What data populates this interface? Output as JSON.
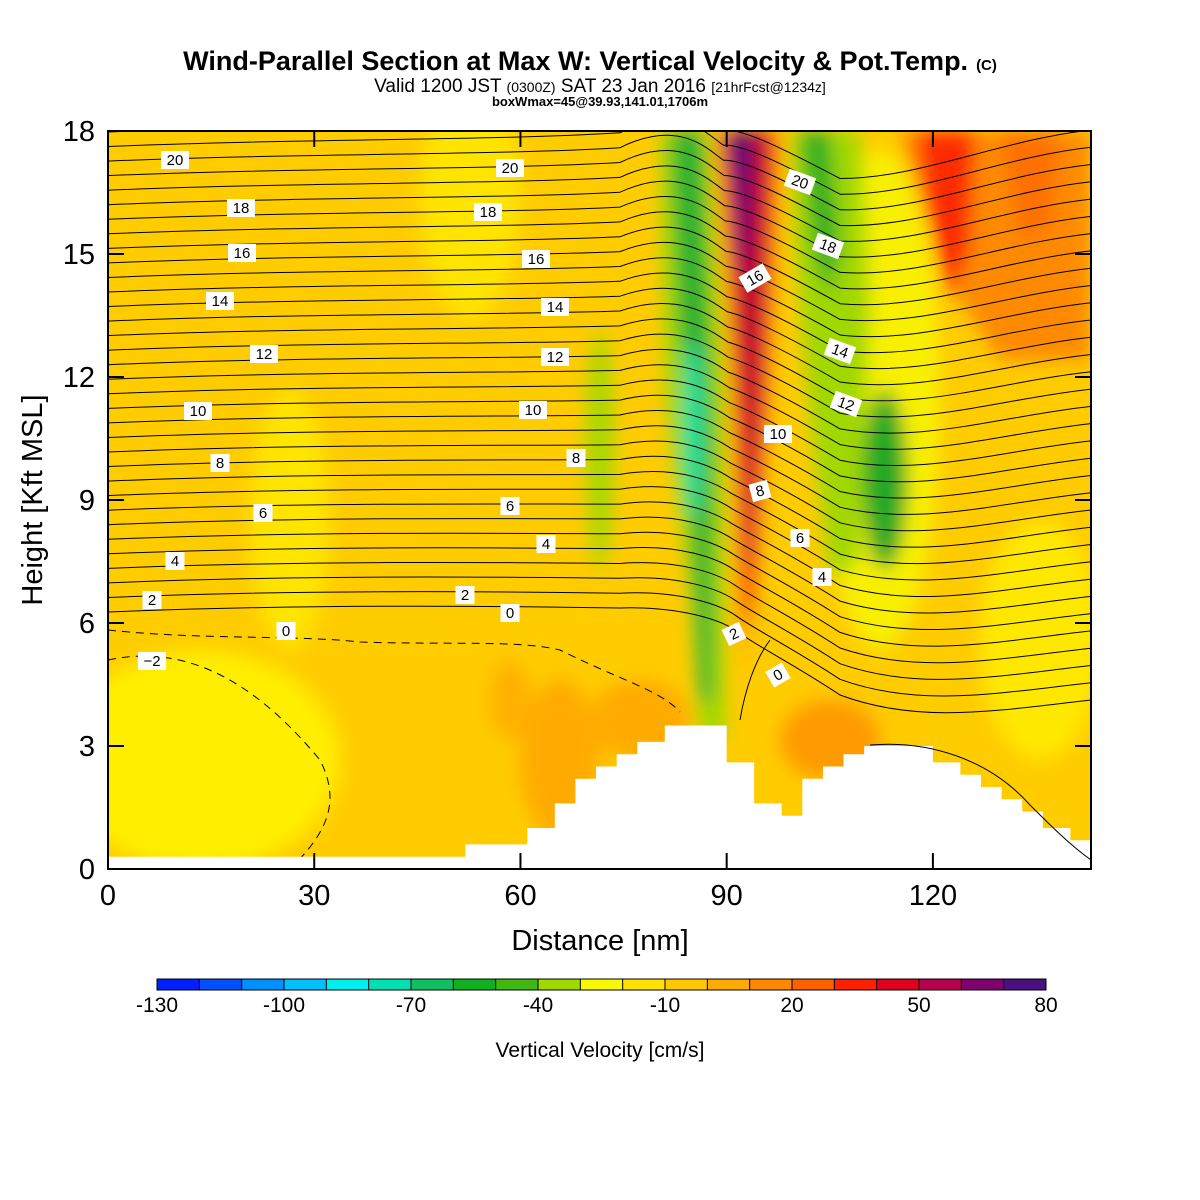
{
  "header": {
    "title": "Wind-Parallel Section at Max W: Vertical Velocity & Pot.Temp.",
    "title_mark": "(C)",
    "valid_prefix": "Valid 1200 JST",
    "valid_tz": "(0300Z)",
    "valid_date": "SAT 23 Jan 2016",
    "valid_fcst": "[21hrFcst@1234z]",
    "box_info": "boxWmax=45@39.93,141.01,1706m"
  },
  "chart_data": {
    "type": "heatmap",
    "xlabel": "Distance [nm]",
    "ylabel": "Height [Kft MSL]",
    "xlim": [
      0,
      143
    ],
    "ylim": [
      0,
      18
    ],
    "x_ticks": [
      "0",
      "30",
      "60",
      "90",
      "120"
    ],
    "y_ticks": [
      "0",
      "3",
      "6",
      "9",
      "12",
      "15",
      "18"
    ],
    "colorbar": {
      "label": "Vertical Velocity [cm/s]",
      "tick_labels": [
        "-130",
        "-100",
        "-70",
        "-40",
        "-10",
        "20",
        "50",
        "80"
      ],
      "colors": [
        "#0020ff",
        "#0050ff",
        "#0090ff",
        "#00c0ff",
        "#00eeee",
        "#00e0b0",
        "#10c060",
        "#10b020",
        "#40b810",
        "#a0d800",
        "#f8f800",
        "#ffe000",
        "#ffc800",
        "#ffaa00",
        "#ff8800",
        "#ff6000",
        "#ff2000",
        "#e00020",
        "#b80050",
        "#800070",
        "#4a1080"
      ]
    },
    "terrain_steps": [
      [
        0,
        0.3
      ],
      [
        52,
        0.3
      ],
      [
        52,
        0.6
      ],
      [
        61,
        0.6
      ],
      [
        61,
        1.0
      ],
      [
        65,
        1.0
      ],
      [
        65,
        1.6
      ],
      [
        68,
        1.6
      ],
      [
        68,
        2.2
      ],
      [
        71,
        2.2
      ],
      [
        71,
        2.5
      ],
      [
        74,
        2.5
      ],
      [
        74,
        2.8
      ],
      [
        77,
        2.8
      ],
      [
        77,
        3.1
      ],
      [
        81,
        3.1
      ],
      [
        81,
        3.5
      ],
      [
        90,
        3.5
      ],
      [
        90,
        2.6
      ],
      [
        94,
        2.6
      ],
      [
        94,
        1.6
      ],
      [
        98,
        1.6
      ],
      [
        98,
        1.3
      ],
      [
        101,
        1.3
      ],
      [
        101,
        2.2
      ],
      [
        104,
        2.2
      ],
      [
        104,
        2.5
      ],
      [
        107,
        2.5
      ],
      [
        107,
        2.8
      ],
      [
        110,
        2.8
      ],
      [
        110,
        3.0
      ],
      [
        120,
        3.0
      ],
      [
        120,
        2.6
      ],
      [
        124,
        2.6
      ],
      [
        124,
        2.3
      ],
      [
        127,
        2.3
      ],
      [
        127,
        2.0
      ],
      [
        130,
        2.0
      ],
      [
        130,
        1.7
      ],
      [
        133,
        1.7
      ],
      [
        133,
        1.4
      ],
      [
        136,
        1.4
      ],
      [
        136,
        1.0
      ],
      [
        140,
        1.0
      ],
      [
        140,
        0.7
      ],
      [
        143,
        0.7
      ]
    ],
    "theta_label_values": [
      "20",
      "18",
      "16",
      "14",
      "12",
      "10",
      "8",
      "6",
      "4",
      "2",
      "0",
      "−2"
    ]
  }
}
